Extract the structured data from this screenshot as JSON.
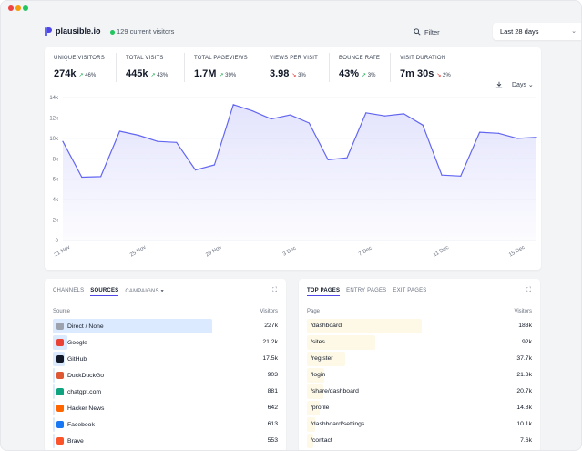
{
  "app": {
    "site_name": "plausible.io",
    "live_visitors": "129 current visitors",
    "filter_label": "Filter",
    "date_range": "Last 28 days"
  },
  "stats": [
    {
      "label": "UNIQUE VISITORS",
      "value": "274k",
      "change": "46%",
      "direction": "up",
      "active": true
    },
    {
      "label": "TOTAL VISITS",
      "value": "445k",
      "change": "43%",
      "direction": "up",
      "active": false
    },
    {
      "label": "TOTAL PAGEVIEWS",
      "value": "1.7M",
      "change": "39%",
      "direction": "up",
      "active": false
    },
    {
      "label": "VIEWS PER VISIT",
      "value": "3.98",
      "change": "3%",
      "direction": "down",
      "active": false
    },
    {
      "label": "BOUNCE RATE",
      "value": "43%",
      "change": "3%",
      "direction": "up",
      "active": false
    },
    {
      "label": "VISIT DURATION",
      "value": "7m 30s",
      "change": "2%",
      "direction": "down",
      "active": false
    }
  ],
  "interval_label": "Days",
  "chart_data": {
    "type": "area",
    "ylim": [
      0,
      14000
    ],
    "y_ticks": [
      "0",
      "2k",
      "4k",
      "6k",
      "8k",
      "10k",
      "12k",
      "14k"
    ],
    "x_tick_labels": [
      {
        "label": "21 Nov",
        "index": 0
      },
      {
        "label": "25 Nov",
        "index": 4
      },
      {
        "label": "29 Nov",
        "index": 8
      },
      {
        "label": "3 Dec",
        "index": 12
      },
      {
        "label": "7 Dec",
        "index": 16
      },
      {
        "label": "11 Dec",
        "index": 20
      },
      {
        "label": "15 Dec",
        "index": 24
      }
    ],
    "series": [
      {
        "values": [
          9700,
          6200,
          6250,
          10700,
          10300,
          9700,
          9600,
          6900,
          7400,
          13300,
          12700,
          11900,
          12300,
          11500,
          7900,
          8100,
          12500,
          12200,
          12400,
          11300,
          6400,
          6300,
          10600,
          10500,
          10000,
          10100
        ],
        "color": "#6366f1"
      }
    ],
    "grid": true
  },
  "sources_panel": {
    "tabs": [
      "CHANNELS",
      "SOURCES",
      "CAMPAIGNS"
    ],
    "active_tab": "SOURCES",
    "campaigns_chevron": "▾",
    "col_label": "Source",
    "col_value": "Visitors",
    "bar_color": "#dbeafe",
    "rows": [
      {
        "label": "Direct / None",
        "value": "227k",
        "fraction": 1.0,
        "icon": "link-icon",
        "icon_color": "#9ca3af"
      },
      {
        "label": "Google",
        "value": "21.2k",
        "fraction": 0.093,
        "icon": "google-icon",
        "icon_color": "#ea4335"
      },
      {
        "label": "GitHub",
        "value": "17.5k",
        "fraction": 0.077,
        "icon": "github-icon",
        "icon_color": "#111827"
      },
      {
        "label": "DuckDuckGo",
        "value": "903",
        "fraction": 0.004,
        "icon": "duckduckgo-icon",
        "icon_color": "#de5833"
      },
      {
        "label": "chatgpt.com",
        "value": "881",
        "fraction": 0.004,
        "icon": "chatgpt-icon",
        "icon_color": "#10a37f"
      },
      {
        "label": "Hacker News",
        "value": "642",
        "fraction": 0.003,
        "icon": "hackernews-icon",
        "icon_color": "#ff6600"
      },
      {
        "label": "Facebook",
        "value": "613",
        "fraction": 0.003,
        "icon": "facebook-icon",
        "icon_color": "#1877f2"
      },
      {
        "label": "Brave",
        "value": "553",
        "fraction": 0.002,
        "icon": "brave-icon",
        "icon_color": "#fb542b"
      }
    ]
  },
  "pages_panel": {
    "tabs": [
      "TOP PAGES",
      "ENTRY PAGES",
      "EXIT PAGES"
    ],
    "active_tab": "TOP PAGES",
    "col_label": "Page",
    "col_value": "Visitors",
    "bar_color": "#fef9e7",
    "rows": [
      {
        "label": "/dashboard",
        "value": "183k",
        "fraction": 0.72
      },
      {
        "label": "/sites",
        "value": "92k",
        "fraction": 0.43
      },
      {
        "label": "/register",
        "value": "37.7k",
        "fraction": 0.24
      },
      {
        "label": "/login",
        "value": "21.3k",
        "fraction": 0.11
      },
      {
        "label": "/share/dashboard",
        "value": "20.7k",
        "fraction": 0.1
      },
      {
        "label": "/profile",
        "value": "14.8k",
        "fraction": 0.08
      },
      {
        "label": "/dashboard/settings",
        "value": "10.1k",
        "fraction": 0.05
      },
      {
        "label": "/contact",
        "value": "7.6k",
        "fraction": 0.04
      }
    ]
  }
}
